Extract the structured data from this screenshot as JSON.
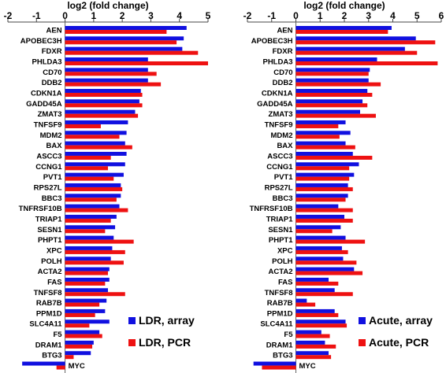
{
  "colors": {
    "array": "#1010e0",
    "pcr": "#ee1111"
  },
  "chart_data": [
    {
      "type": "bar",
      "orientation": "horizontal",
      "xlabel": "log2 (fold change)",
      "xlim": [
        -2,
        5
      ],
      "xticks": [
        -2,
        -1,
        0,
        1,
        2,
        3,
        4,
        5
      ],
      "grid": false,
      "legend_position": "bottom-right",
      "categories": [
        "AEN",
        "APOBEC3H",
        "FDXR",
        "PHLDA3",
        "CD70",
        "DDB2",
        "CDKN1A",
        "GADD45A",
        "ZMAT3",
        "TNFSF9",
        "MDM2",
        "BAX",
        "ASCC3",
        "CCNG1",
        "PVT1",
        "RPS27L",
        "BBC3",
        "TNFRSF10B",
        "TRIAP1",
        "SESN1",
        "PHPT1",
        "XPC",
        "POLH",
        "ACTA2",
        "FAS",
        "TNFSF8",
        "RAB7B",
        "PPM1D",
        "SLC4A11",
        "F5",
        "DRAM1",
        "BTG3",
        "MYC"
      ],
      "series": [
        {
          "name": "LDR, array",
          "values": [
            4.25,
            4.15,
            4.1,
            2.9,
            2.9,
            2.9,
            2.65,
            2.6,
            2.45,
            2.2,
            2.15,
            2.1,
            2.15,
            2.1,
            2.05,
            1.95,
            1.95,
            1.9,
            1.8,
            1.75,
            1.7,
            1.65,
            1.6,
            1.55,
            1.55,
            1.5,
            1.45,
            1.4,
            1.55,
            1.2,
            1.0,
            0.9,
            -1.5
          ]
        },
        {
          "name": "LDR, PCR",
          "values": [
            3.55,
            3.9,
            4.65,
            5.0,
            3.2,
            3.35,
            2.7,
            2.7,
            2.55,
            1.25,
            1.9,
            2.35,
            1.6,
            1.5,
            1.7,
            2.0,
            1.8,
            2.2,
            1.6,
            1.4,
            2.4,
            2.1,
            2.05,
            1.5,
            1.4,
            2.1,
            1.2,
            1.05,
            0.85,
            1.3,
            0.95,
            0.3,
            -0.3
          ]
        }
      ],
      "legend": [
        "LDR, array",
        "LDR, PCR"
      ]
    },
    {
      "type": "bar",
      "orientation": "horizontal",
      "xlabel": "log2 (fold change)",
      "xlim": [
        -2,
        6
      ],
      "xticks": [
        -2,
        -1,
        0,
        1,
        2,
        3,
        4,
        5,
        6
      ],
      "grid": false,
      "legend_position": "bottom-right",
      "categories": [
        "AEN",
        "APOBEC3H",
        "FDXR",
        "PHLDA3",
        "CD70",
        "DDB2",
        "CDKN1A",
        "GADD45A",
        "ZMAT3",
        "TNFSF9",
        "MDM2",
        "BAX",
        "ASCC3",
        "CCNG1",
        "PVT1",
        "RPS27L",
        "BBC3",
        "TNFRSF10B",
        "TRIAP1",
        "SESN1",
        "PHPT1",
        "XPC",
        "POLH",
        "ACTA2",
        "FAS",
        "TNFSF8",
        "RAB7B",
        "PPM1D",
        "SLC4A11",
        "F5",
        "DRAM1",
        "BTG3",
        "MYC"
      ],
      "series": [
        {
          "name": "Acute, array",
          "values": [
            3.95,
            4.95,
            4.5,
            3.35,
            3.05,
            3.0,
            2.95,
            2.75,
            2.65,
            2.05,
            2.25,
            2.05,
            2.35,
            2.6,
            2.4,
            2.15,
            2.15,
            1.75,
            2.0,
            1.85,
            2.05,
            1.9,
            1.95,
            2.4,
            1.35,
            1.6,
            0.45,
            1.6,
            2.05,
            1.05,
            1.2,
            1.35,
            -1.75
          ]
        },
        {
          "name": "Acute, PCR",
          "values": [
            3.8,
            5.75,
            5.0,
            5.85,
            3.0,
            3.5,
            3.15,
            2.95,
            3.3,
            1.75,
            1.8,
            2.45,
            3.15,
            2.2,
            2.2,
            2.35,
            2.05,
            2.35,
            2.35,
            1.5,
            2.85,
            2.15,
            2.5,
            2.75,
            1.75,
            2.35,
            0.8,
            1.75,
            2.1,
            1.4,
            1.65,
            1.45,
            -1.4
          ]
        }
      ],
      "legend": [
        "Acute, array",
        "Acute, PCR"
      ]
    }
  ]
}
